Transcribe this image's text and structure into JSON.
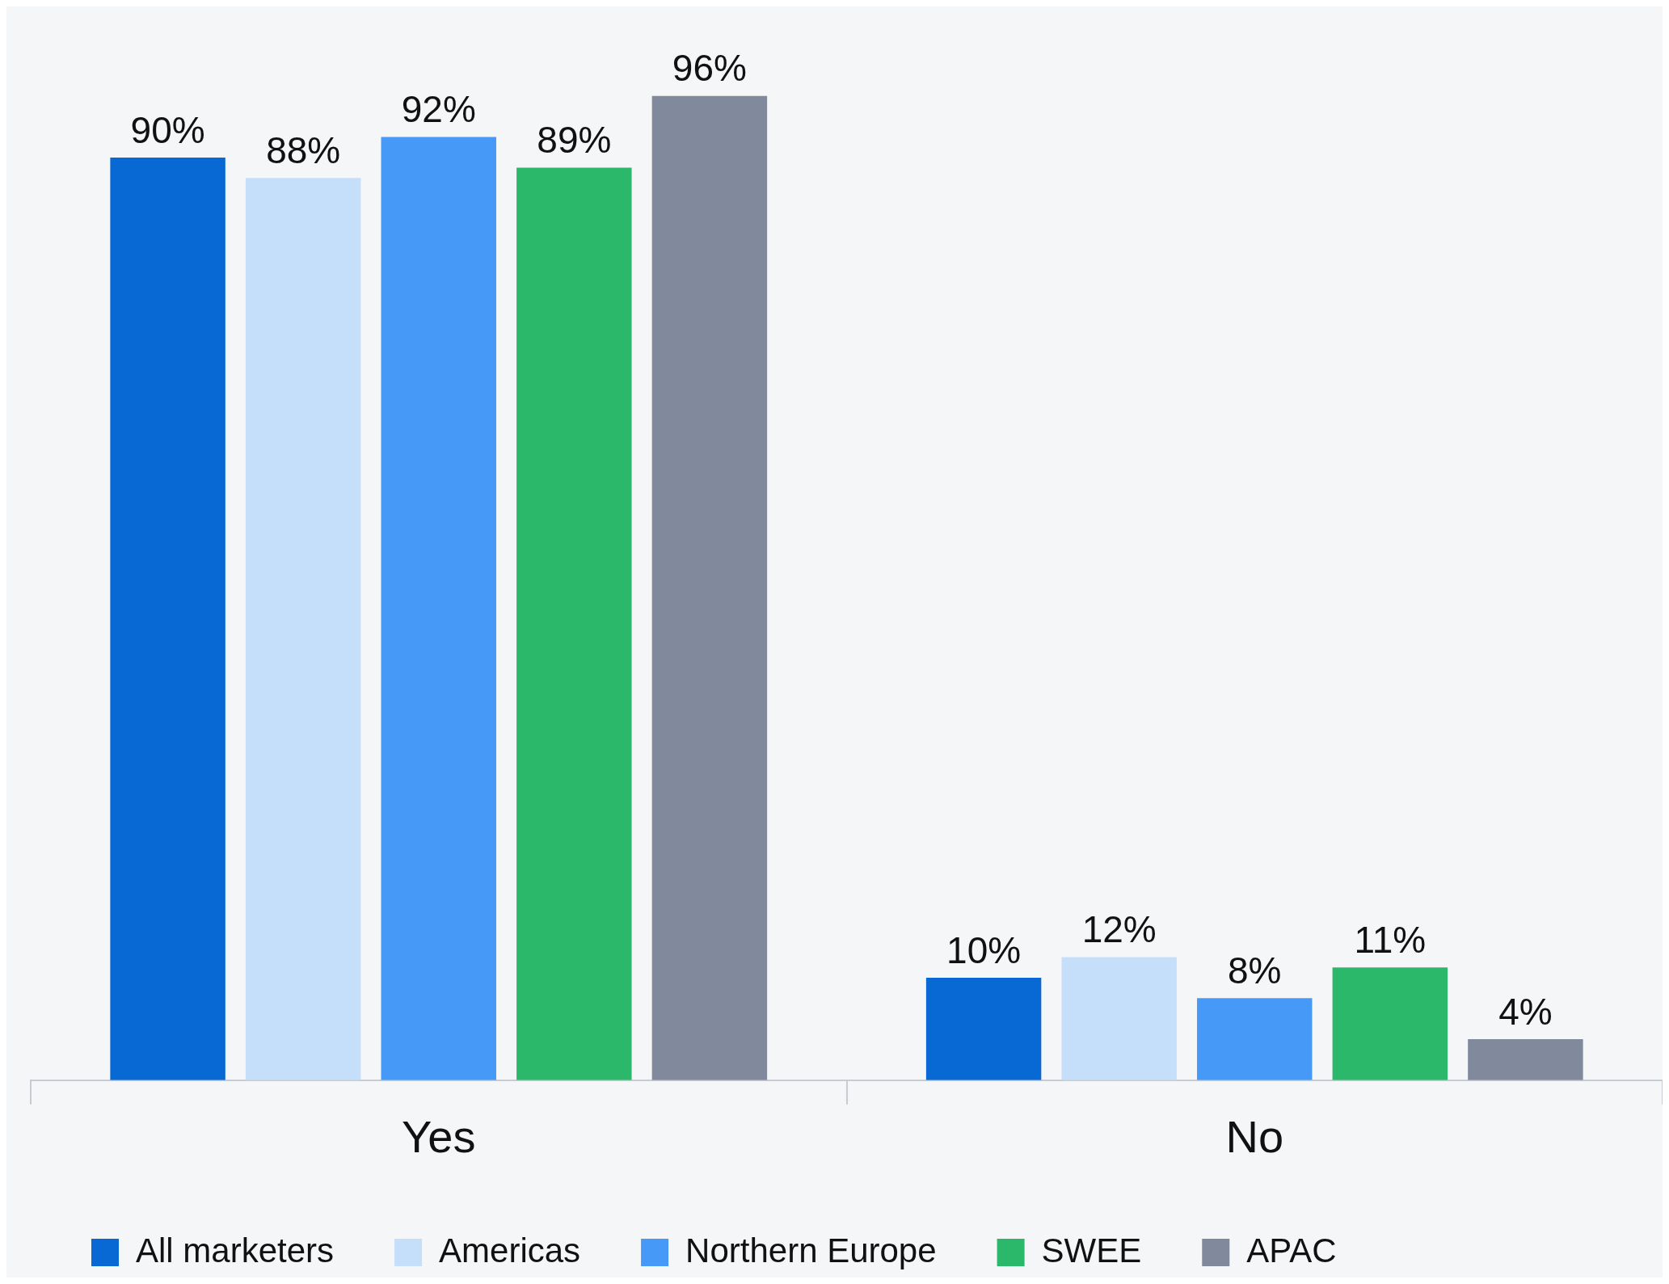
{
  "chart_data": {
    "type": "bar",
    "categories": [
      "Yes",
      "No"
    ],
    "series": [
      {
        "name": "All marketers",
        "color": "#0868d4",
        "values": [
          90,
          10
        ],
        "value_labels": [
          "90%",
          "10%"
        ]
      },
      {
        "name": "Americas",
        "color": "#c5dffb",
        "values": [
          88,
          12
        ],
        "value_labels": [
          "88%",
          "12%"
        ]
      },
      {
        "name": "Northern Europe",
        "color": "#4799f8",
        "values": [
          92,
          8
        ],
        "value_labels": [
          "92%",
          "8%"
        ]
      },
      {
        "name": "SWEE",
        "color": "#2bb86a",
        "values": [
          89,
          11
        ],
        "value_labels": [
          "89%",
          "11%"
        ]
      },
      {
        "name": "APAC",
        "color": "#808a9c",
        "values": [
          96,
          4
        ],
        "value_labels": [
          "96%",
          "4%"
        ]
      }
    ],
    "legend": "bottom",
    "tick_labels": "x"
  }
}
